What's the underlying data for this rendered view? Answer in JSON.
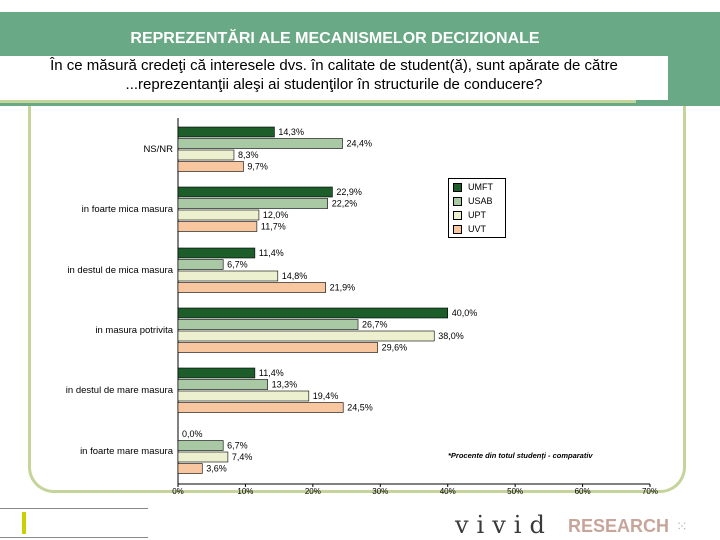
{
  "slide": {
    "title": "REPREZENTĂRI ALE MECANISMELOR DECIZIONALE",
    "question_line1": "În ce măsură credeţi că interesele dvs. în calitate de student(ă), sunt apărate de către",
    "question_line2": "...reprezentanţii aleşi ai studenţilor în structurile de conducere?",
    "note": "*Procente din totul studenţi - comparativ",
    "brand": "vivid",
    "brand_research": "RESEARCH"
  },
  "colors": {
    "header_bg": "#6aa985",
    "frame": "#c4d49a",
    "brand_accent": "#c9d200"
  },
  "chart_data": {
    "type": "bar",
    "orientation": "horizontal",
    "categories": [
      "NS/NR",
      "in foarte mica masura",
      "in destul de mica masura",
      "in masura potrivita",
      "in destul de mare masura",
      "in foarte mare masura"
    ],
    "series": [
      {
        "name": "UMFT",
        "color": "#1d5d2a",
        "values": [
          14.3,
          22.9,
          11.4,
          40.0,
          11.4,
          0.0
        ],
        "labels": [
          "14,3%",
          "22,9%",
          "11,4%",
          "40,0%",
          "11,4%",
          "0,0%"
        ]
      },
      {
        "name": "USAB",
        "color": "#a9c9a5",
        "values": [
          24.4,
          22.2,
          6.7,
          26.7,
          13.3,
          6.7
        ],
        "labels": [
          "24,4%",
          "22,2%",
          "6,7%",
          "26,7%",
          "13,3%",
          "6,7%"
        ]
      },
      {
        "name": "UPT",
        "color": "#ecf0cf",
        "values": [
          8.3,
          12.0,
          14.8,
          38.0,
          19.4,
          7.4
        ],
        "labels": [
          "8,3%",
          "12,0%",
          "14,8%",
          "38,0%",
          "19,4%",
          "7,4%"
        ]
      },
      {
        "name": "UVT",
        "color": "#f8c7a0",
        "values": [
          9.7,
          11.7,
          21.9,
          29.6,
          24.5,
          3.6
        ],
        "labels": [
          "9,7%",
          "11,7%",
          "21,9%",
          "29,6%",
          "24,5%",
          "3,6%"
        ]
      }
    ],
    "xlim": [
      0,
      70
    ],
    "xticks": [
      "0%",
      "10%",
      "20%",
      "30%",
      "40%",
      "50%",
      "60%",
      "70%"
    ],
    "legend": "right",
    "grid": false
  }
}
